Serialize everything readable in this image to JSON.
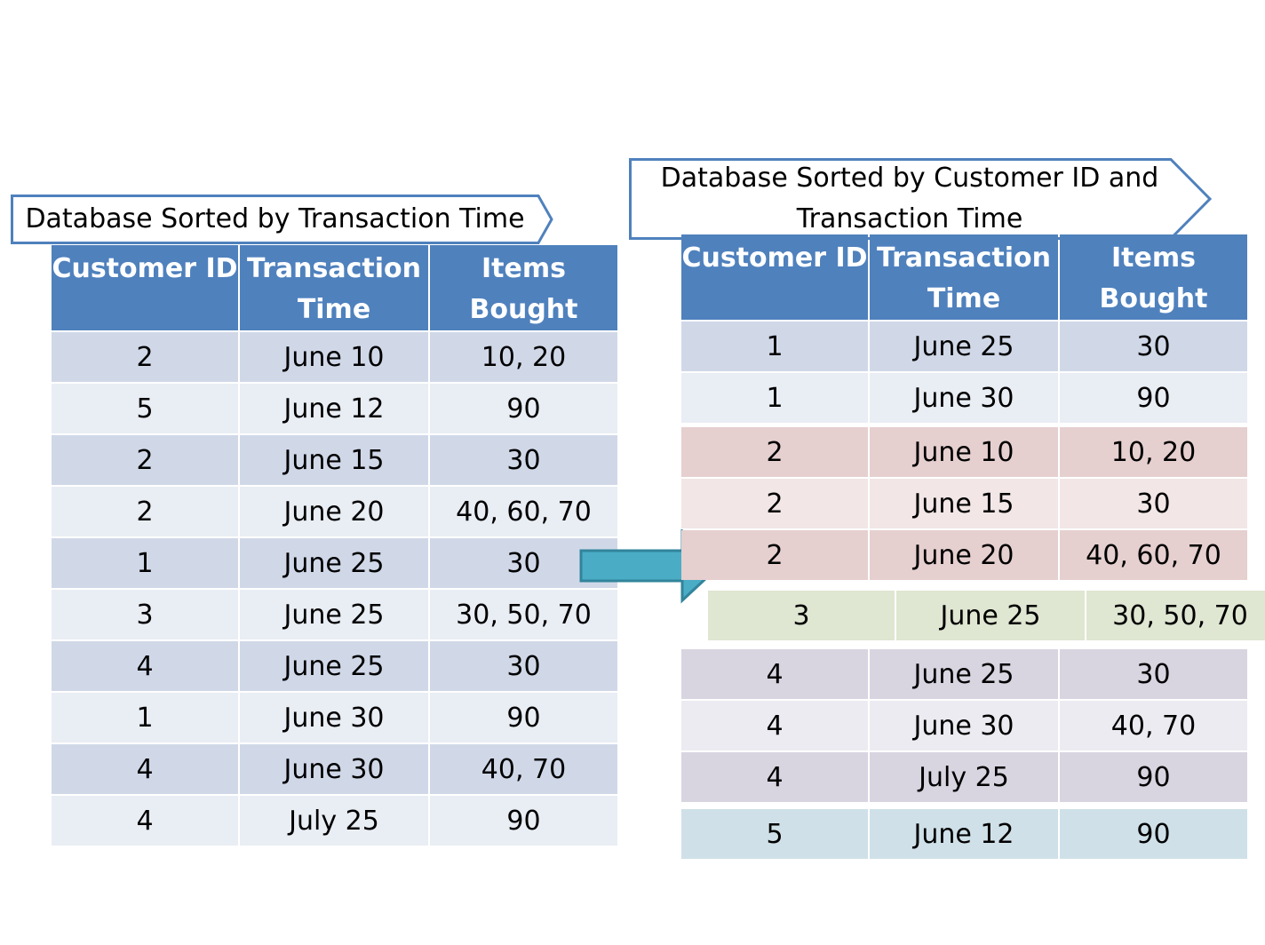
{
  "left": {
    "title": "Database Sorted by Transaction Time",
    "headers": [
      "Customer ID",
      "Transaction Time",
      "Items Bought"
    ],
    "rows": [
      [
        "2",
        "June 10",
        "10, 20"
      ],
      [
        "5",
        "June 12",
        "90"
      ],
      [
        "2",
        "June 15",
        "30"
      ],
      [
        "2",
        "June 20",
        "40, 60, 70"
      ],
      [
        "1",
        "June 25",
        "30"
      ],
      [
        "3",
        "June 25",
        "30, 50, 70"
      ],
      [
        "4",
        "June 25",
        "30"
      ],
      [
        "1",
        "June 30",
        "90"
      ],
      [
        "4",
        "June 30",
        "40, 70"
      ],
      [
        "4",
        "July 25",
        "90"
      ]
    ]
  },
  "right": {
    "title_line1": "Database Sorted by Customer ID and",
    "title_line2": "Transaction Time",
    "headers": [
      "Customer ID",
      "Transaction Time",
      "Items Bought"
    ],
    "groups": [
      {
        "customer": "1",
        "rows": [
          [
            "1",
            "June 25",
            "30"
          ],
          [
            "1",
            "June 30",
            "90"
          ]
        ]
      },
      {
        "customer": "2",
        "rows": [
          [
            "2",
            "June 10",
            "10, 20"
          ],
          [
            "2",
            "June 15",
            "30"
          ],
          [
            "2",
            "June 20",
            "40, 60, 70"
          ]
        ]
      },
      {
        "customer": "3",
        "rows": [
          [
            "3",
            "June 25",
            "30, 50, 70"
          ]
        ]
      },
      {
        "customer": "4",
        "rows": [
          [
            "4",
            "June 25",
            "30"
          ],
          [
            "4",
            "June 30",
            "40, 70"
          ],
          [
            "4",
            "July 25",
            "90"
          ]
        ]
      },
      {
        "customer": "5",
        "rows": [
          [
            "5",
            "June 12",
            "90"
          ]
        ]
      }
    ]
  },
  "colors": {
    "header": "#4f81bd",
    "row_dark": "#d0d8e8",
    "row_light": "#e9edf4",
    "group2_dark": "#e6cfcf",
    "group2_light": "#f2e6e6",
    "group3": "#dfe6d1",
    "group4_dark": "#d8d4e0",
    "group4_light": "#ecebf1",
    "group5": "#cfe0e8",
    "arrow": "#4bacc6"
  }
}
